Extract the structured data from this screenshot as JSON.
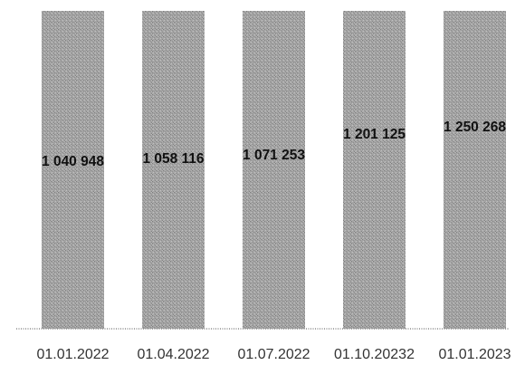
{
  "chart_data": {
    "type": "bar",
    "categories": [
      "01.01.2022",
      "01.04.2022",
      "01.07.2022",
      "01.10.20232",
      "01.01.2023"
    ],
    "values": [
      1040948,
      1058116,
      1071253,
      1201125,
      1250268
    ],
    "value_labels": [
      "1 040 948",
      "1 058 116",
      "1 071 253",
      "1 201 125",
      "1 250 268"
    ],
    "bar_color": "#a6a6a6",
    "title": "",
    "xlabel": "",
    "ylabel": "",
    "grid": false,
    "legend": "none"
  }
}
